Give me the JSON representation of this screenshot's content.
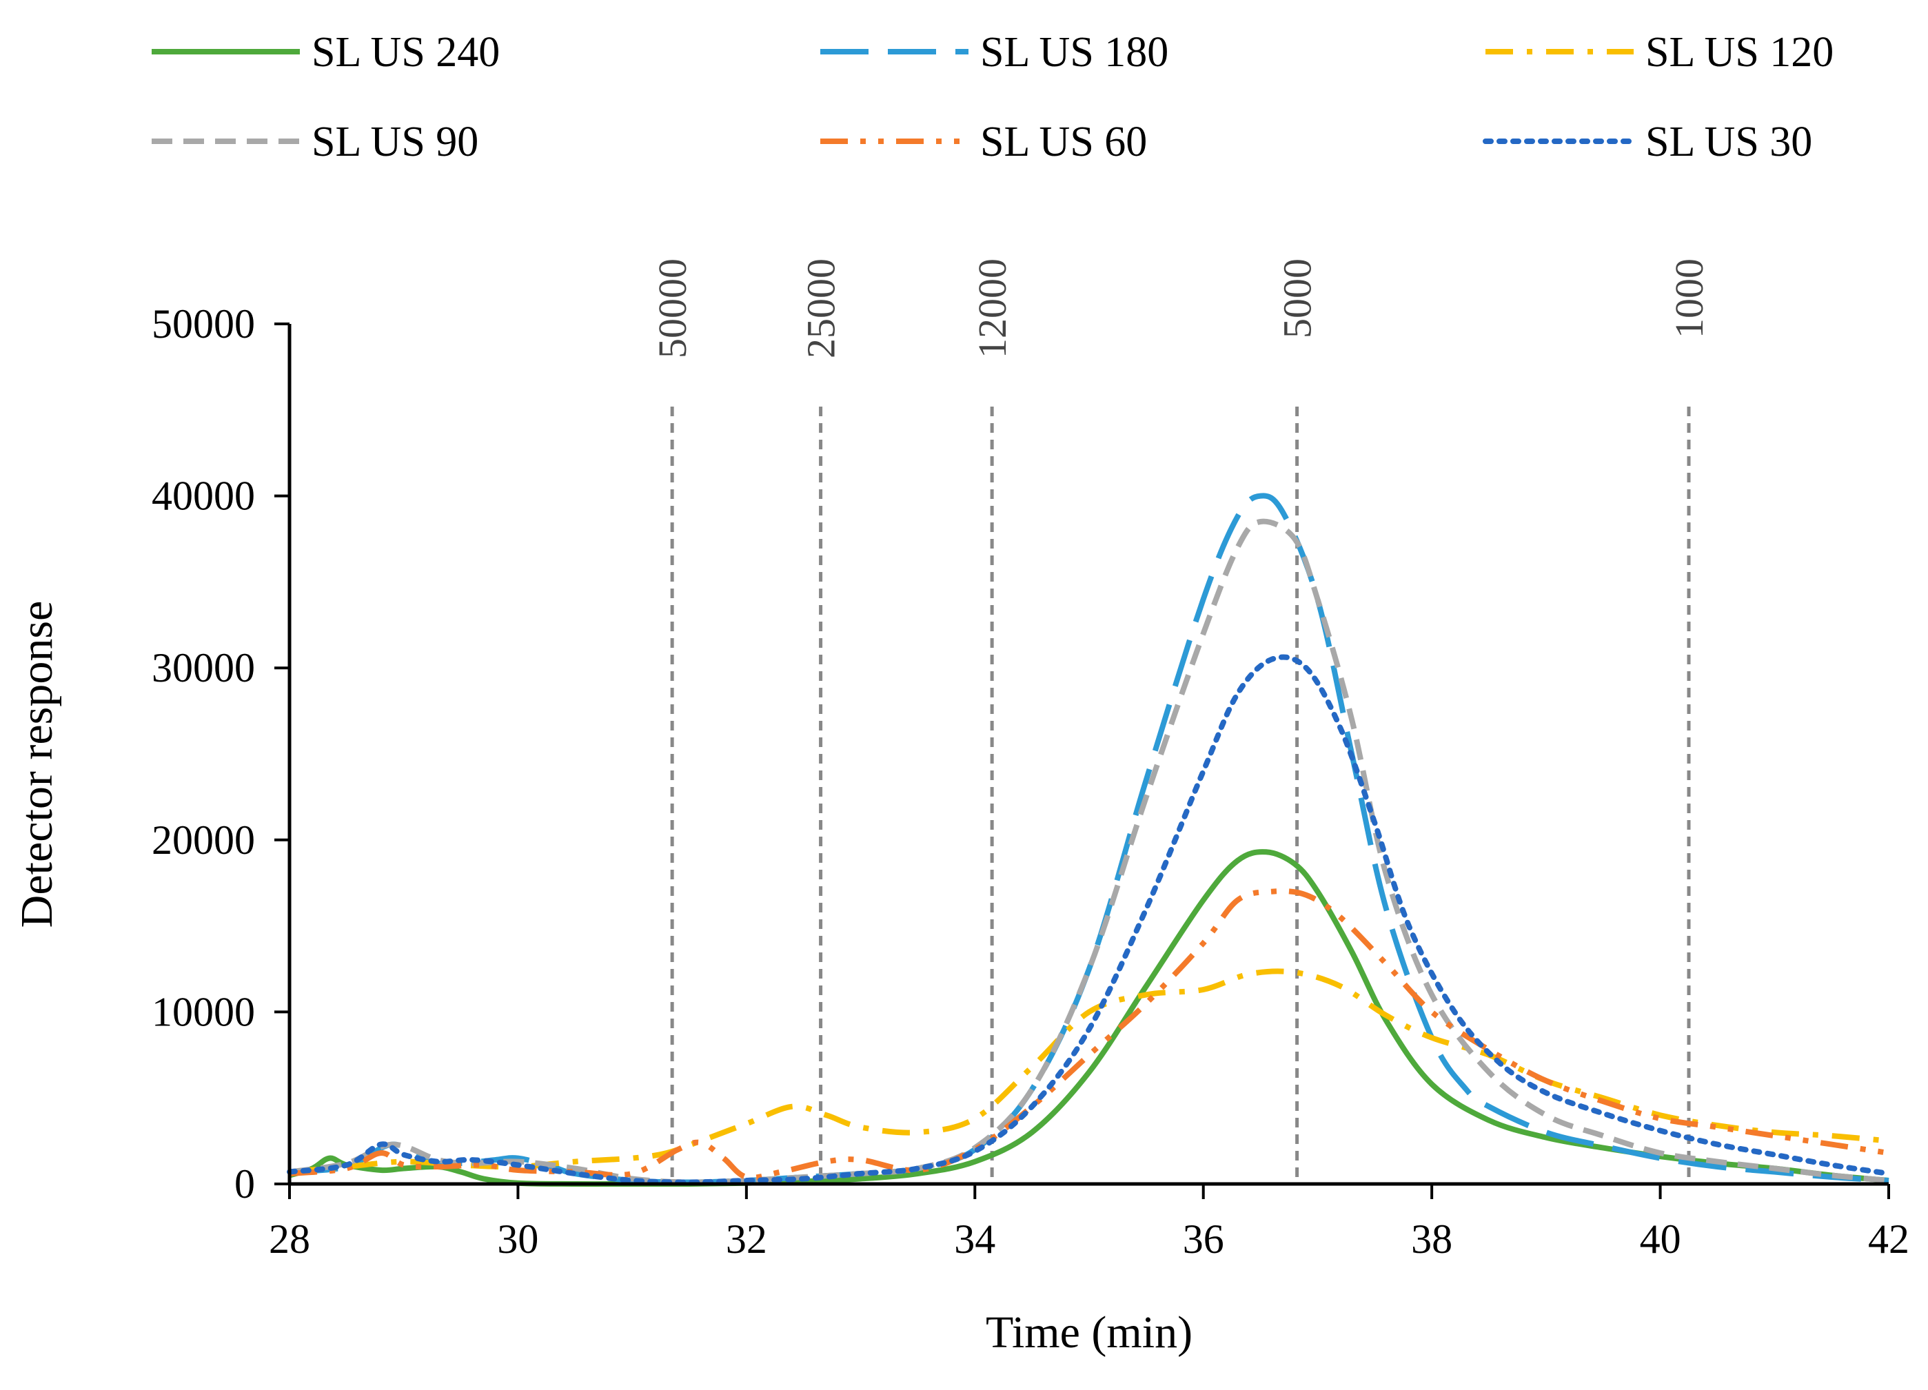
{
  "chart_data": {
    "type": "line",
    "title": "",
    "xlabel": "Time (min)",
    "ylabel": "Detector response",
    "xlim": [
      28,
      42
    ],
    "ylim": [
      0,
      50000
    ],
    "xticks": [
      28,
      30,
      32,
      34,
      36,
      38,
      40,
      42
    ],
    "yticks": [
      0,
      10000,
      20000,
      30000,
      40000,
      50000
    ],
    "grid": false,
    "legend_position": "top",
    "markers": [
      {
        "label": "50000",
        "x": 31.35
      },
      {
        "label": "25000",
        "x": 32.65
      },
      {
        "label": "12000",
        "x": 34.15
      },
      {
        "label": "5000",
        "x": 36.82
      },
      {
        "label": "1000",
        "x": 40.25
      }
    ],
    "series": [
      {
        "name": "SL US 240",
        "color": "#4ea93b",
        "dash": "solid",
        "x": [
          28,
          28.2,
          28.35,
          28.5,
          28.8,
          29,
          29.3,
          29.5,
          29.7,
          30,
          30.5,
          31,
          31.5,
          32,
          32.5,
          33,
          33.5,
          34,
          34.5,
          35,
          35.5,
          36,
          36.3,
          36.55,
          36.8,
          37,
          37.3,
          37.6,
          38,
          38.5,
          39,
          39.5,
          40,
          40.5,
          41,
          41.5,
          42
        ],
        "values": [
          500,
          900,
          1500,
          1100,
          800,
          900,
          1000,
          700,
          300,
          50,
          0,
          0,
          0,
          50,
          150,
          300,
          600,
          1300,
          3000,
          6500,
          11500,
          16500,
          18800,
          19300,
          18600,
          17000,
          13500,
          9500,
          5800,
          3700,
          2700,
          2100,
          1600,
          1200,
          900,
          500,
          200
        ]
      },
      {
        "name": "SL US 180",
        "color": "#2c9ad6",
        "dash": "longdash",
        "x": [
          28,
          28.5,
          28.9,
          29.2,
          29.5,
          29.8,
          30,
          30.3,
          30.5,
          31,
          31.5,
          32,
          32.5,
          33,
          33.5,
          34,
          34.5,
          35,
          35.5,
          36,
          36.3,
          36.5,
          36.7,
          37,
          37.3,
          37.6,
          38,
          38.3,
          38.5,
          39,
          39.5,
          40,
          40.5,
          41,
          41.5,
          42
        ],
        "values": [
          700,
          1000,
          2300,
          1300,
          1200,
          1400,
          1500,
          1000,
          600,
          200,
          100,
          200,
          400,
          600,
          900,
          2000,
          5500,
          12500,
          23500,
          34000,
          38800,
          40000,
          39000,
          34000,
          25000,
          16000,
          8500,
          5500,
          4500,
          3000,
          2200,
          1500,
          1000,
          700,
          400,
          200
        ]
      },
      {
        "name": "SL US 120",
        "color": "#f9be00",
        "dash": "dashdot",
        "x": [
          28,
          28.5,
          29,
          29.5,
          30,
          30.5,
          31,
          31.3,
          31.6,
          32,
          32.4,
          32.7,
          33,
          33.5,
          34,
          34.5,
          35,
          35.5,
          36,
          36.4,
          36.8,
          37.2,
          37.6,
          38,
          38.5,
          39,
          39.5,
          40,
          40.5,
          41,
          41.5,
          42
        ],
        "values": [
          700,
          1000,
          1300,
          1100,
          1000,
          1300,
          1500,
          1800,
          2500,
          3500,
          4500,
          4000,
          3300,
          3000,
          3800,
          6800,
          10000,
          11000,
          11300,
          12200,
          12300,
          11500,
          9800,
          8500,
          7500,
          6000,
          5000,
          4000,
          3400,
          3000,
          2800,
          2500
        ]
      },
      {
        "name": "SL US 90",
        "color": "#a8a8a8",
        "dash": "dashed",
        "x": [
          28,
          28.5,
          28.9,
          29.3,
          29.6,
          30,
          30.5,
          31,
          31.5,
          32,
          32.5,
          33,
          33.5,
          34,
          34.5,
          35,
          35.5,
          36,
          36.3,
          36.5,
          36.8,
          37,
          37.3,
          37.6,
          38,
          38.5,
          39,
          39.5,
          40,
          40.5,
          41,
          41.5,
          42
        ],
        "values": [
          700,
          1200,
          2300,
          1400,
          1200,
          1300,
          900,
          300,
          100,
          200,
          400,
          600,
          900,
          2100,
          5500,
          12500,
          22500,
          32000,
          37000,
          38500,
          37500,
          34000,
          27000,
          18000,
          11000,
          6500,
          4000,
          2800,
          1800,
          1300,
          900,
          500,
          200
        ]
      },
      {
        "name": "SL US 60",
        "color": "#f47a2a",
        "dash": "dashdotdot",
        "x": [
          28,
          28.5,
          28.8,
          29,
          29.3,
          29.7,
          30,
          30.5,
          31,
          31.4,
          31.6,
          31.8,
          32,
          32.3,
          32.7,
          33,
          33.5,
          34,
          34.5,
          35,
          35.5,
          36,
          36.3,
          36.6,
          36.9,
          37.2,
          37.6,
          38,
          38.5,
          39,
          39.5,
          40,
          40.5,
          41,
          41.5,
          42
        ],
        "values": [
          600,
          900,
          1800,
          1100,
          1000,
          1100,
          800,
          700,
          600,
          2000,
          2400,
          1500,
          400,
          700,
          1300,
          1400,
          800,
          2000,
          4500,
          7500,
          10500,
          14000,
          16500,
          17000,
          16800,
          15500,
          12800,
          10000,
          7800,
          6000,
          4800,
          3800,
          3300,
          2800,
          2300,
          1800
        ]
      },
      {
        "name": "SL US 30",
        "color": "#2468c4",
        "dash": "dotted",
        "x": [
          28,
          28.5,
          28.8,
          29,
          29.3,
          29.6,
          30,
          30.5,
          31,
          31.5,
          32,
          32.5,
          33,
          33.5,
          34,
          34.5,
          35,
          35.5,
          36,
          36.3,
          36.6,
          36.9,
          37.2,
          37.5,
          37.8,
          38.2,
          38.6,
          39,
          39.5,
          40,
          40.5,
          41,
          41.5,
          42
        ],
        "values": [
          700,
          1100,
          2300,
          1700,
          1300,
          1400,
          1100,
          600,
          200,
          100,
          200,
          300,
          600,
          900,
          1900,
          4500,
          9000,
          16000,
          24000,
          28500,
          30500,
          30000,
          26500,
          21000,
          15000,
          10000,
          7000,
          5300,
          4100,
          3100,
          2300,
          1700,
          1100,
          600
        ]
      }
    ]
  }
}
